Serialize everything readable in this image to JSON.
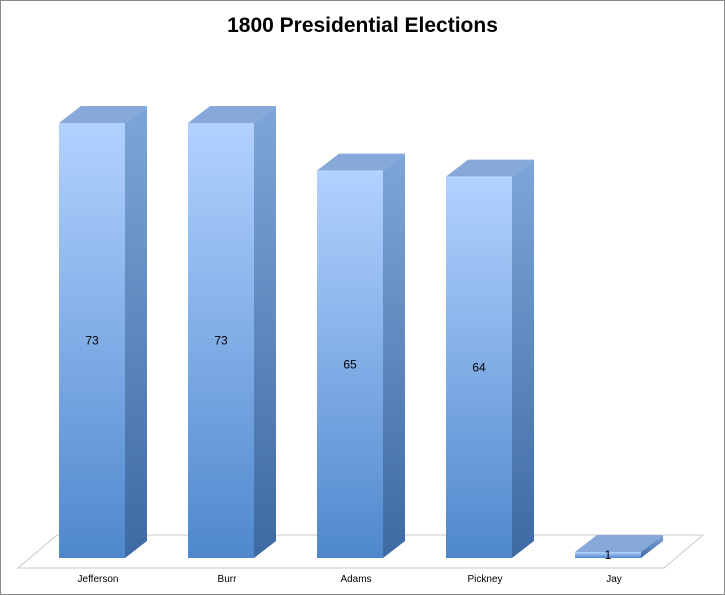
{
  "chart_data": {
    "type": "bar",
    "title": "1800 Presidential Elections",
    "xlabel": "",
    "ylabel": "",
    "categories": [
      "Jefferson",
      "Burr",
      "Adams",
      "Pickney",
      "Jay"
    ],
    "values": [
      73,
      73,
      65,
      64,
      1
    ],
    "ylim": [
      0,
      80
    ],
    "grid": false,
    "legend": "none",
    "style": "3d-column",
    "colors": {
      "front_light": "#b2d2ff",
      "front_dark": "#4f88cd",
      "side_light": "#7ea6d8",
      "side_dark": "#3d6aa3",
      "top": "#86a9da",
      "floor": "#ffffff",
      "floor_edge": "#c8c8c8"
    }
  }
}
